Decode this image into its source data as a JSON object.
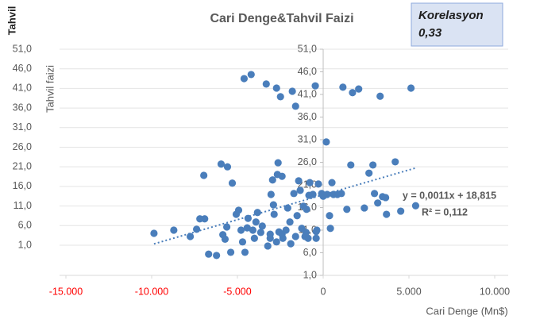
{
  "chart_data": {
    "type": "scatter",
    "title": "Cari Denge&Tahvil Faizi",
    "corner_label": "Tahvil",
    "ylabel": "Tahvil faizi",
    "xlabel": "Cari Denge (Mn$)",
    "annotation": {
      "title": "Korelasyon",
      "value": "0,33"
    },
    "color": "#4a7ebb",
    "negative_tick_color": "#ff0000",
    "grid": true,
    "xlim": [
      -15000,
      10000
    ],
    "xticks": [
      {
        "value": -15000,
        "label": "-15.000"
      },
      {
        "value": -10000,
        "label": "-10.000"
      },
      {
        "value": -5000,
        "label": "-5.000"
      },
      0,
      {
        "value": 5000,
        "label": "5.000"
      },
      {
        "value": 10000,
        "label": "10.000"
      }
    ],
    "ylim": [
      1,
      51
    ],
    "yticks": [
      {
        "value": 1,
        "label": "1,0"
      },
      {
        "value": 6,
        "label": "6,0"
      },
      {
        "value": 11,
        "label": "11,0"
      },
      {
        "value": 16,
        "label": "16,0"
      },
      {
        "value": 21,
        "label": "21,0"
      },
      {
        "value": 26,
        "label": "26,0"
      },
      {
        "value": 31,
        "label": "31,0"
      },
      {
        "value": 36,
        "label": "36,0"
      },
      {
        "value": 41,
        "label": "41,0"
      },
      {
        "value": 46,
        "label": "46,0"
      },
      {
        "value": 51,
        "label": "51,0"
      }
    ],
    "y2lim": [
      -6.7,
      51
    ],
    "y2ticks": [
      {
        "value": 1,
        "label": "1,0"
      },
      {
        "value": 6,
        "label": "6,0"
      },
      {
        "value": 11,
        "label": "11,0"
      },
      {
        "value": 16,
        "label": "16,0"
      },
      {
        "value": 21,
        "label": "21,0"
      },
      {
        "value": 26,
        "label": "26,0"
      },
      {
        "value": 31,
        "label": "31,0"
      },
      {
        "value": 36,
        "label": "36,0"
      },
      {
        "value": 41,
        "label": "41,0"
      },
      {
        "value": 46,
        "label": "46,0"
      },
      {
        "value": 51,
        "label": "51,0"
      }
    ],
    "trendline": {
      "equation": "y = 0,0011x + 18,815",
      "r2": "R² = 0,112",
      "slope": 0.0011,
      "intercept": 18.815
    },
    "x": [
      -9865,
      -8710,
      -7750,
      -7380,
      -7190,
      -6910,
      -6960,
      -6680,
      -6220,
      -5950,
      -5850,
      -5720,
      -5580,
      -5620,
      -5390,
      -5300,
      -5070,
      -4930,
      -4700,
      -4610,
      -4560,
      -4430,
      -4380,
      -4200,
      -4100,
      -4010,
      -3920,
      -3830,
      -3640,
      -3550,
      -3320,
      -3230,
      -3090,
      -3040,
      -2950,
      -2900,
      -2860,
      -2720,
      -2720,
      -2630,
      -2580,
      -2670,
      -2490,
      -2400,
      -2350,
      -2170,
      -2070,
      -1940,
      -1890,
      -1800,
      -1710,
      -1610,
      -1610,
      -1520,
      -1430,
      -1340,
      -1250,
      -1150,
      -1060,
      -970,
      -880,
      -830,
      -780,
      -600,
      -460,
      -410,
      -370,
      -280,
      -90,
      0,
      180,
      230,
      370,
      420,
      510,
      600,
      830,
      1060,
      1150,
      1380,
      1610,
      1710,
      2070,
      2400,
      2670,
      2900,
      2990,
      3180,
      3320,
      3460,
      3690,
      3640,
      4200,
      4520,
      5120,
      5390,
      -4790,
      -3090,
      -2400,
      -1000,
      -410
    ],
    "values": [
      10.3,
      11,
      9.6,
      11.2,
      13.5,
      13.5,
      23.1,
      5.7,
      5.4,
      25.6,
      10,
      9,
      25,
      11.7,
      6.1,
      21.4,
      14.5,
      15.4,
      8.4,
      44.5,
      6.1,
      11.5,
      13.6,
      45.4,
      11,
      9.2,
      12.8,
      14.9,
      10.5,
      11.9,
      43.3,
      7.5,
      10.1,
      18.9,
      22.1,
      16.6,
      14.5,
      42.4,
      8.4,
      25.9,
      10.6,
      23.3,
      40.5,
      22.9,
      9.2,
      11,
      15.9,
      12.8,
      8,
      41.7,
      19.1,
      38.4,
      9.6,
      14.2,
      21.9,
      19.8,
      11.4,
      16.3,
      9.6,
      15.6,
      9.2,
      18.7,
      21.5,
      18.9,
      42.9,
      9.2,
      11,
      21.2,
      19.1,
      18.5,
      30.5,
      18.9,
      14.2,
      11.4,
      21.5,
      18.9,
      18.9,
      19.1,
      42.6,
      15.6,
      25.4,
      41.4,
      42.2,
      15.9,
      23.6,
      25.4,
      19.1,
      17,
      40.6,
      18.4,
      14.5,
      18.2,
      26.1,
      15.2,
      42.4,
      16.4,
      11,
      9.2,
      10.1,
      10.5,
      10.7
    ]
  }
}
